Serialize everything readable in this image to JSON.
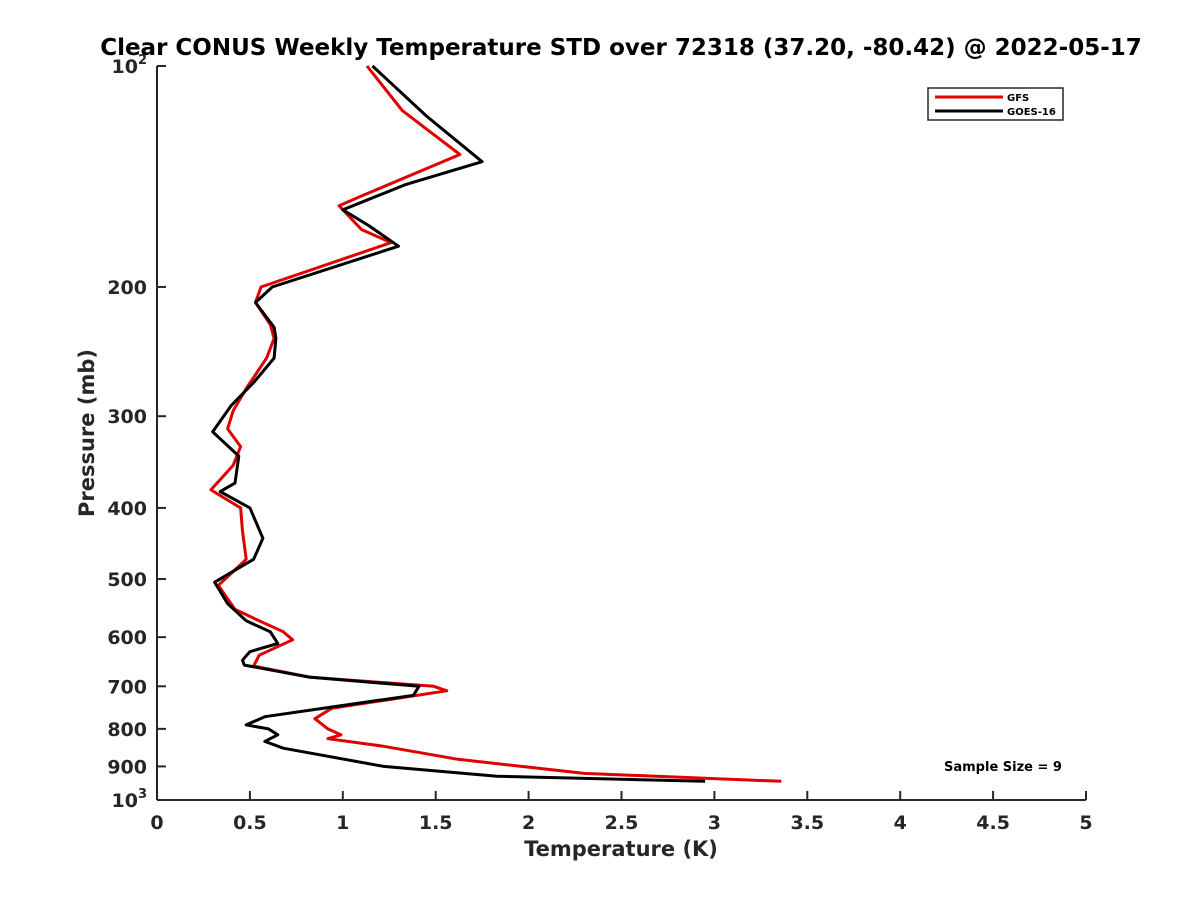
{
  "chart_data": {
    "type": "line",
    "title": "Clear CONUS Weekly Temperature STD over 72318 (37.20, -80.42) @ 2022-05-17",
    "xlabel": "Temperature (K)",
    "ylabel": "Pressure (mb)",
    "xlim": [
      0,
      5
    ],
    "ylim": [
      100,
      1000
    ],
    "y_scale": "log",
    "y_reversed": true,
    "xticks": [
      0,
      0.5,
      1,
      1.5,
      2,
      2.5,
      3,
      3.5,
      4,
      4.5,
      5
    ],
    "xtick_labels": [
      "0",
      "0.5",
      "1",
      "1.5",
      "2",
      "2.5",
      "3",
      "3.5",
      "4",
      "4.5",
      "5"
    ],
    "yticks": [
      {
        "value": 100,
        "base": "10",
        "exp": "2"
      },
      {
        "value": 200,
        "base": "200",
        "exp": ""
      },
      {
        "value": 300,
        "base": "300",
        "exp": ""
      },
      {
        "value": 400,
        "base": "400",
        "exp": ""
      },
      {
        "value": 500,
        "base": "500",
        "exp": ""
      },
      {
        "value": 600,
        "base": "600",
        "exp": ""
      },
      {
        "value": 700,
        "base": "700",
        "exp": ""
      },
      {
        "value": 800,
        "base": "800",
        "exp": ""
      },
      {
        "value": 900,
        "base": "900",
        "exp": ""
      },
      {
        "value": 1000,
        "base": "10",
        "exp": "3"
      }
    ],
    "grid": false,
    "legend_position": "top-right",
    "annotation": "Sample Size = 9",
    "series": [
      {
        "name": "GFS",
        "color": "#e00000",
        "points": [
          [
            1.13,
            100
          ],
          [
            1.32,
            115
          ],
          [
            1.63,
            132
          ],
          [
            1.11,
            150
          ],
          [
            0.98,
            155
          ],
          [
            1.1,
            167
          ],
          [
            1.26,
            174
          ],
          [
            0.56,
            200
          ],
          [
            0.53,
            210
          ],
          [
            0.61,
            225
          ],
          [
            0.63,
            235
          ],
          [
            0.59,
            250
          ],
          [
            0.48,
            275
          ],
          [
            0.41,
            295
          ],
          [
            0.38,
            312
          ],
          [
            0.45,
            330
          ],
          [
            0.41,
            350
          ],
          [
            0.29,
            378
          ],
          [
            0.45,
            400
          ],
          [
            0.46,
            430
          ],
          [
            0.48,
            470
          ],
          [
            0.33,
            510
          ],
          [
            0.42,
            550
          ],
          [
            0.55,
            570
          ],
          [
            0.68,
            590
          ],
          [
            0.73,
            605
          ],
          [
            0.55,
            635
          ],
          [
            0.52,
            657
          ],
          [
            0.82,
            680
          ],
          [
            1.49,
            700
          ],
          [
            1.56,
            710
          ],
          [
            0.94,
            750
          ],
          [
            0.85,
            775
          ],
          [
            0.92,
            800
          ],
          [
            0.99,
            815
          ],
          [
            0.92,
            825
          ],
          [
            1.22,
            845
          ],
          [
            1.62,
            880
          ],
          [
            2.3,
            920
          ],
          [
            3.36,
            943
          ]
        ]
      },
      {
        "name": "GOES-16",
        "color": "#000000",
        "points": [
          [
            1.16,
            100
          ],
          [
            1.45,
            117
          ],
          [
            1.75,
            135
          ],
          [
            1.34,
            145
          ],
          [
            1.0,
            157
          ],
          [
            1.14,
            165
          ],
          [
            1.3,
            176
          ],
          [
            0.62,
            200
          ],
          [
            0.53,
            210
          ],
          [
            0.63,
            227
          ],
          [
            0.64,
            235
          ],
          [
            0.63,
            250
          ],
          [
            0.52,
            270
          ],
          [
            0.4,
            290
          ],
          [
            0.3,
            315
          ],
          [
            0.44,
            340
          ],
          [
            0.42,
            370
          ],
          [
            0.34,
            380
          ],
          [
            0.5,
            400
          ],
          [
            0.57,
            440
          ],
          [
            0.52,
            470
          ],
          [
            0.31,
            505
          ],
          [
            0.38,
            540
          ],
          [
            0.48,
            570
          ],
          [
            0.61,
            590
          ],
          [
            0.65,
            612
          ],
          [
            0.5,
            628
          ],
          [
            0.46,
            645
          ],
          [
            0.47,
            655
          ],
          [
            0.82,
            680
          ],
          [
            1.41,
            700
          ],
          [
            1.38,
            720
          ],
          [
            0.58,
            770
          ],
          [
            0.48,
            790
          ],
          [
            0.6,
            800
          ],
          [
            0.65,
            815
          ],
          [
            0.58,
            832
          ],
          [
            0.68,
            850
          ],
          [
            1.22,
            900
          ],
          [
            1.83,
            928
          ],
          [
            2.95,
            943
          ]
        ]
      }
    ]
  }
}
